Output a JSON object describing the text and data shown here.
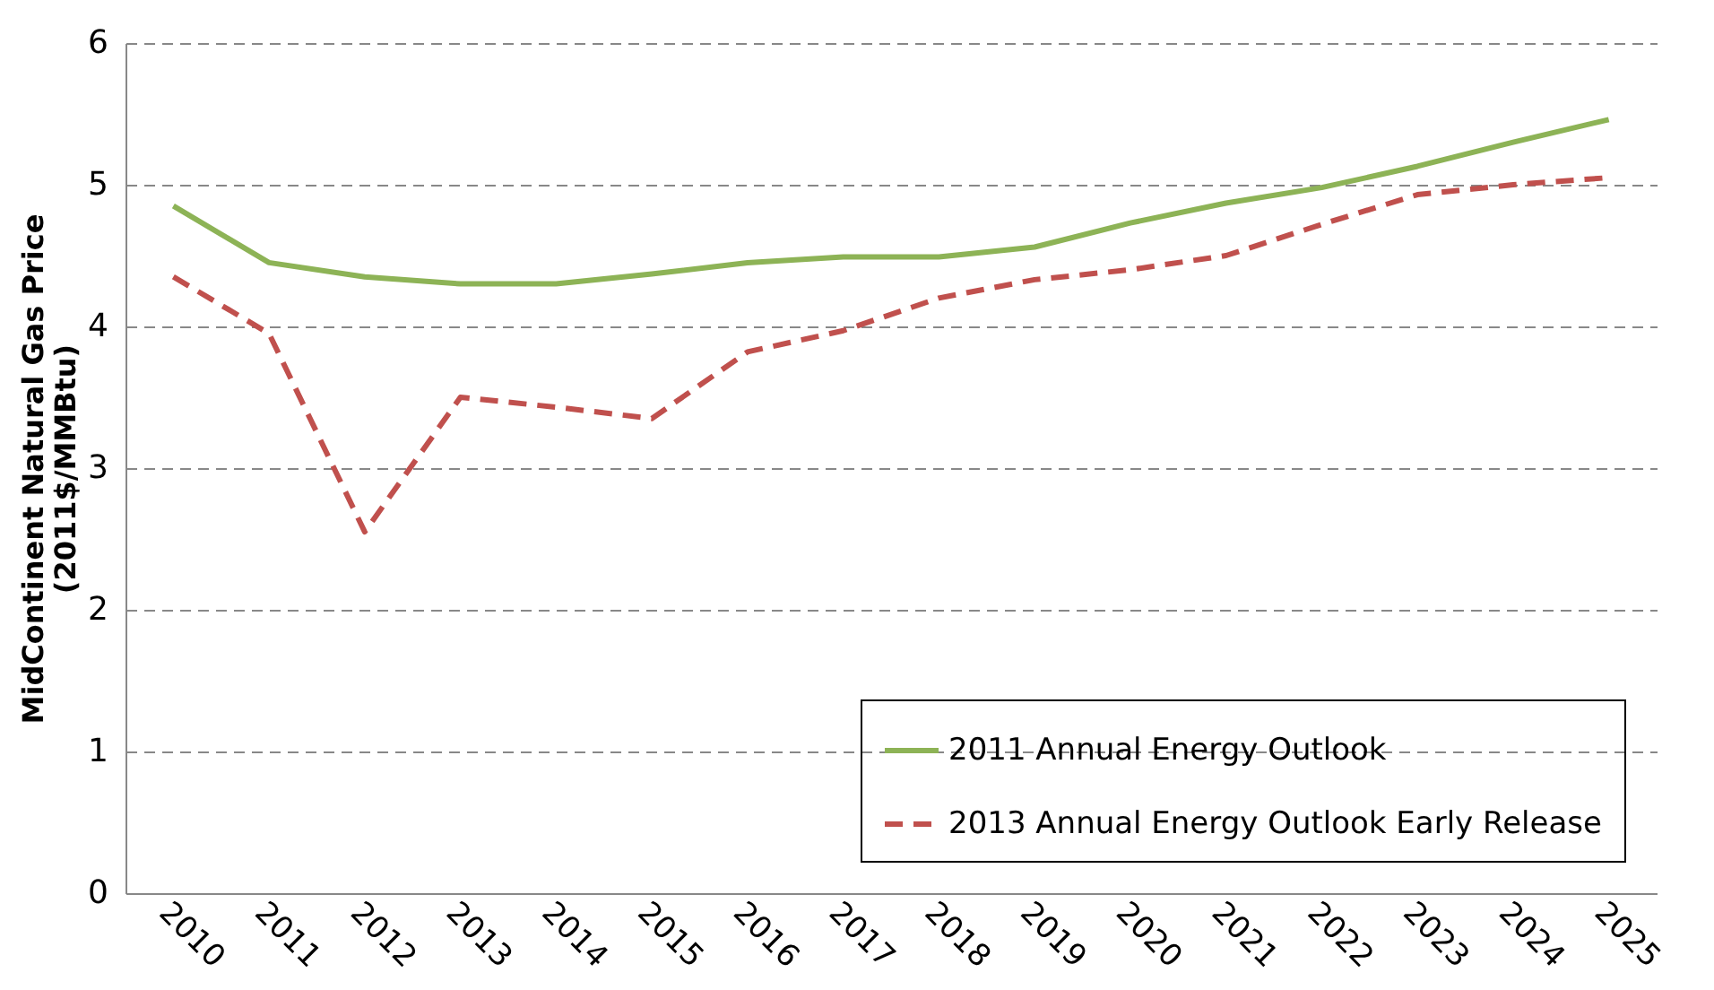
{
  "chart_data": {
    "type": "line",
    "ylabel": "MidContinent Natural Gas Price\n(2011$/MMBtu)",
    "categories": [
      "2010",
      "2011",
      "2012",
      "2013",
      "2014",
      "2015",
      "2016",
      "2017",
      "2018",
      "2019",
      "2020",
      "2021",
      "2022",
      "2023",
      "2024",
      "2025"
    ],
    "ylim": [
      0,
      6
    ],
    "yticks": [
      0,
      1,
      2,
      3,
      4,
      5,
      6
    ],
    "grid": "y",
    "legend": "bottom right",
    "marker": "none",
    "series": [
      {
        "name": "2011 Annual Energy Outlook",
        "color": "#8db356",
        "line_style": "solid",
        "values": [
          4.85,
          4.45,
          4.35,
          4.3,
          4.3,
          4.37,
          4.45,
          4.49,
          4.49,
          4.56,
          4.73,
          4.87,
          4.98,
          5.13,
          5.3,
          5.46
        ]
      },
      {
        "name": "2013 Annual Energy Outlook Early Release",
        "color": "#c0504d",
        "line_style": "dashed",
        "values": [
          4.35,
          3.95,
          2.55,
          3.5,
          3.43,
          3.35,
          3.82,
          3.97,
          4.2,
          4.33,
          4.4,
          4.5,
          4.72,
          4.93,
          5.0,
          5.05
        ]
      }
    ]
  }
}
